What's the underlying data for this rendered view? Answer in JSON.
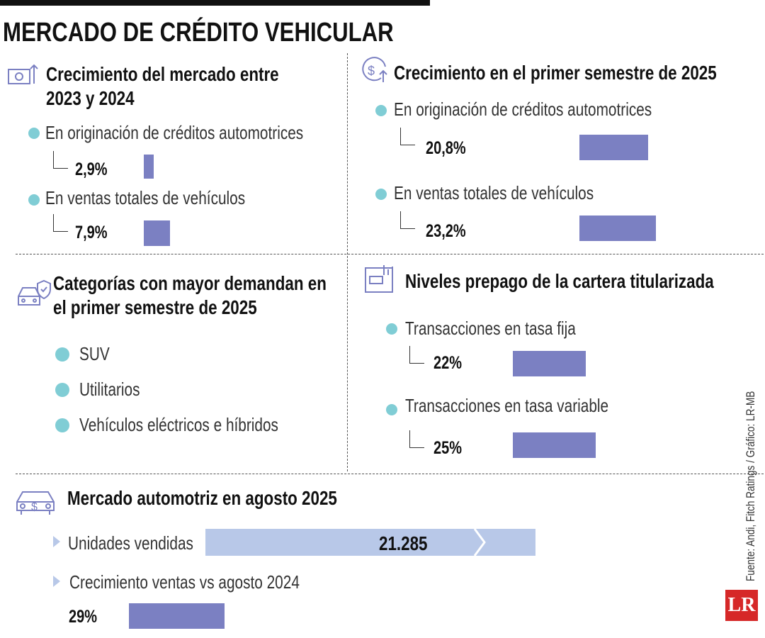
{
  "title": "MERCADO DE CRÉDITO VEHICULAR",
  "market_2023_2024": {
    "heading": "Crecimiento del mercado entre 2023 y 2024",
    "items": [
      {
        "label": "En originación de créditos automotrices",
        "value": 2.9,
        "value_label": "2,9%"
      },
      {
        "label": "En ventas totales de vehículos",
        "value": 7.9,
        "value_label": "7,9%"
      }
    ]
  },
  "first_half_2025": {
    "heading": "Crecimiento en el primer semestre de 2025",
    "items": [
      {
        "label": "En originación de créditos automotrices",
        "value": 20.8,
        "value_label": "20,8%"
      },
      {
        "label": "En ventas totales de vehículos",
        "value": 23.2,
        "value_label": "23,2%"
      }
    ]
  },
  "categories": {
    "heading": "Categorías con mayor demandan en el primer semestre de 2025",
    "items": [
      "SUV",
      "Utilitarios",
      "Vehículos eléctricos e híbridos"
    ]
  },
  "prepayment": {
    "heading": "Niveles prepago de la cartera titularizada",
    "items": [
      {
        "label": "Transacciones en tasa fija",
        "value": 22,
        "value_label": "22%"
      },
      {
        "label": "Transacciones en tasa variable",
        "value": 25,
        "value_label": "25%"
      }
    ]
  },
  "august_2025": {
    "heading": "Mercado automotriz en agosto 2025",
    "units": {
      "label": "Unidades vendidas",
      "value": 21285,
      "value_label": "21.285"
    },
    "growth": {
      "label": "Crecimiento ventas vs agosto 2024",
      "value": 29,
      "value_label": "29%"
    }
  },
  "source": "Fuente: Andi, Fitch Ratings / Gráfico: LR-MB",
  "logo": "LR"
}
